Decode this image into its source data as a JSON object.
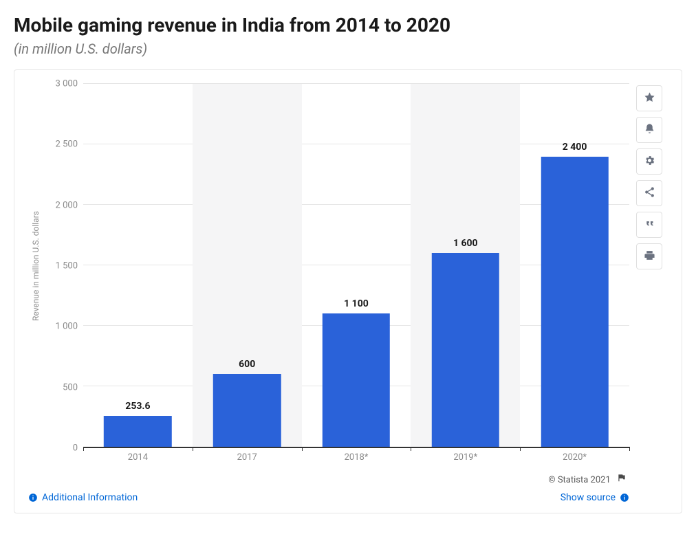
{
  "title": "Mobile gaming revenue in India from 2014 to 2020",
  "subtitle": "(in million U.S. dollars)",
  "chart": {
    "type": "bar",
    "ylabel": "Revenue in million U.S. dollars",
    "ylim": [
      0,
      3000
    ],
    "ytick_step": 500,
    "yticks": [
      "0",
      "500",
      "1 000",
      "1 500",
      "2 000",
      "2 500",
      "3 000"
    ],
    "categories": [
      "2014",
      "2017",
      "2018*",
      "2019*",
      "2020*"
    ],
    "values": [
      253.6,
      600,
      1100,
      1600,
      2400
    ],
    "value_labels": [
      "253.6",
      "600",
      "1 100",
      "1 600",
      "2 400"
    ],
    "bar_color": "#2a62d9",
    "alt_band_color": "#f5f5f6",
    "gridline_color": "#e6e6e6",
    "axis_color": "#333333",
    "bar_width_ratio": 0.62,
    "label_fontsize": 14,
    "tick_fontsize": 13,
    "background_color": "#ffffff"
  },
  "toolbar": {
    "items": [
      {
        "name": "favorite-icon",
        "label": "Favorite"
      },
      {
        "name": "alert-icon",
        "label": "Alert"
      },
      {
        "name": "settings-icon",
        "label": "Settings"
      },
      {
        "name": "share-icon",
        "label": "Share"
      },
      {
        "name": "cite-icon",
        "label": "Cite"
      },
      {
        "name": "print-icon",
        "label": "Print"
      }
    ]
  },
  "attribution": "© Statista 2021",
  "footer": {
    "additional_info": "Additional Information",
    "show_source": "Show source"
  },
  "colors": {
    "title": "#1a1a1a",
    "subtitle": "#777777",
    "link": "#0066d6",
    "tick_text": "#8a8a8a",
    "card_border": "#e6e6e6"
  }
}
